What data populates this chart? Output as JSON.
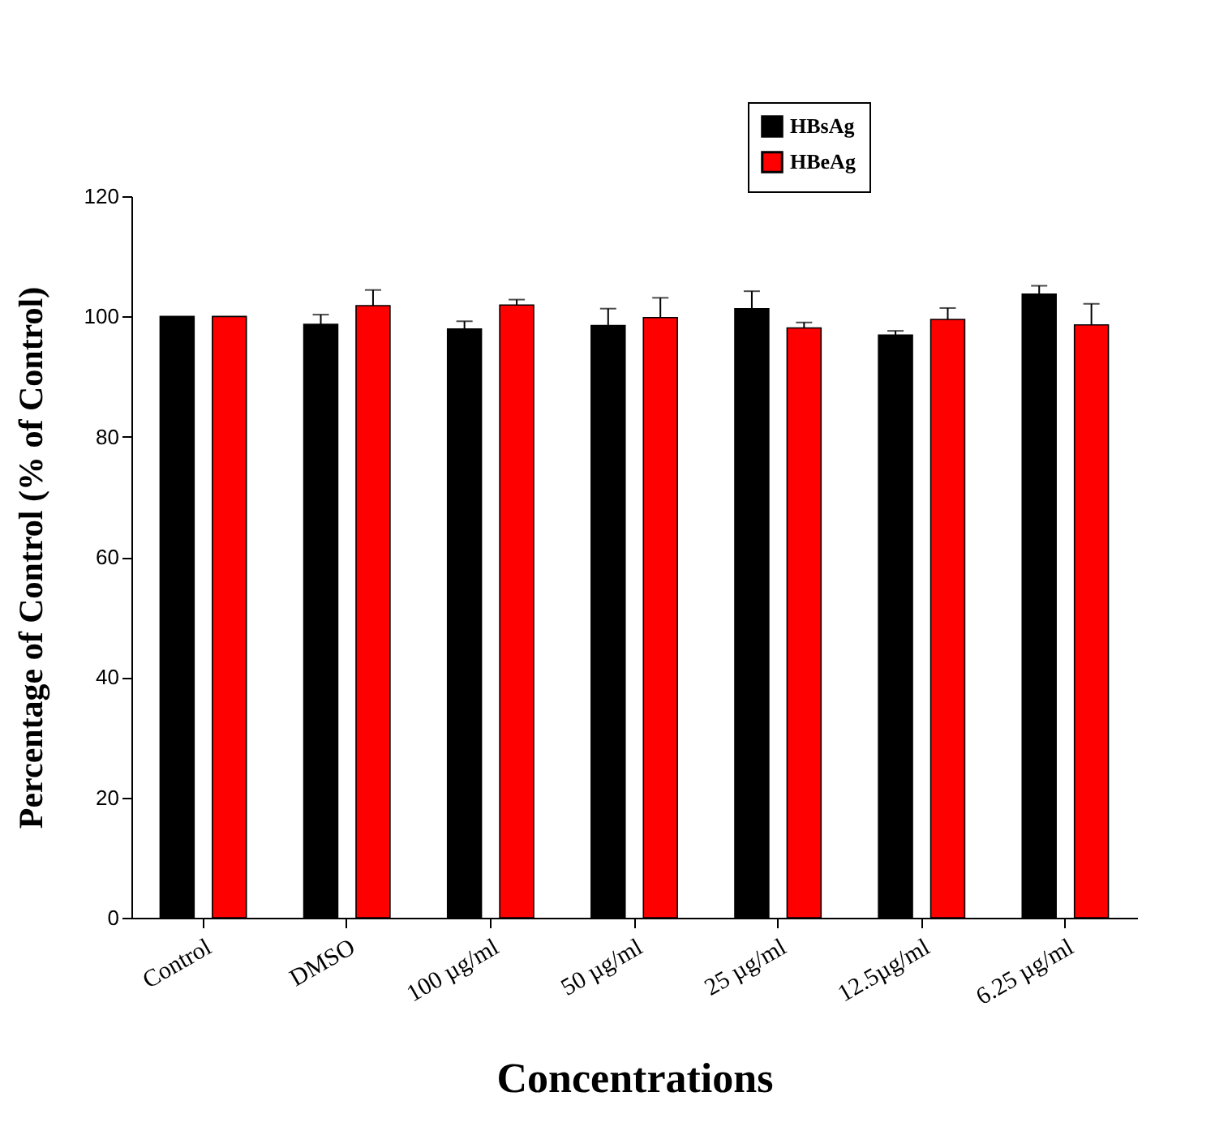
{
  "chart_data": {
    "type": "bar",
    "xlabel": "Concentrations",
    "ylabel": "Percentage of Control (% of Control)",
    "categories": [
      "Control",
      "DMSO",
      "100 µg/ml",
      "50 µg/ml",
      "25 µg/ml",
      "12.5µg/ml",
      "6.25 µg/ml"
    ],
    "series": [
      {
        "name": "HBsAg",
        "color": "#000000",
        "values": [
          100,
          98.7,
          97.9,
          98.5,
          101.3,
          96.9,
          103.7
        ],
        "errors": [
          null,
          [
            98.7,
            100.3
          ],
          [
            97.9,
            99.2
          ],
          [
            98.5,
            101.3
          ],
          [
            101.3,
            104.2
          ],
          [
            96.9,
            97.6
          ],
          [
            103.7,
            105.1
          ]
        ]
      },
      {
        "name": "HBeAg",
        "color": "#ff0000",
        "values": [
          100,
          101.8,
          101.9,
          99.8,
          98.1,
          99.5,
          98.6
        ],
        "errors": [
          null,
          [
            101.8,
            104.4
          ],
          [
            101.9,
            102.8
          ],
          [
            99.8,
            103.1
          ],
          [
            98.1,
            99
          ],
          [
            99.5,
            101.4
          ],
          [
            98.6,
            102.1
          ]
        ]
      }
    ],
    "ylim": [
      0,
      120
    ],
    "yticks": [
      0,
      20,
      40,
      60,
      80,
      100,
      120
    ],
    "grid": false,
    "legend": "top right"
  }
}
